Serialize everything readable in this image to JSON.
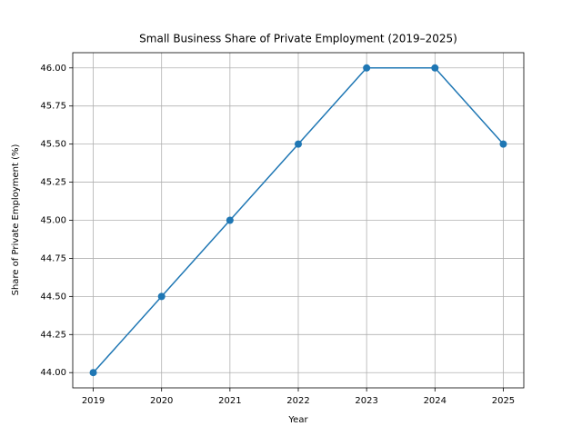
{
  "chart_data": {
    "type": "line",
    "title": "Small Business Share of Private Employment (2019–2025)",
    "x_label": "Year",
    "y_label": "Share of Private Employment (%)",
    "x": [
      2019,
      2020,
      2021,
      2022,
      2023,
      2024,
      2025
    ],
    "series": [
      {
        "color": "#1f77b4",
        "values": [
          44.0,
          44.5,
          45.0,
          45.5,
          46.0,
          46.0,
          45.5
        ]
      }
    ],
    "xlim": [
      2018.7,
      2025.3
    ],
    "xticks": [
      2019,
      2020,
      2021,
      2022,
      2023,
      2024,
      2025
    ],
    "ylim": [
      43.9,
      46.1
    ],
    "yticks": [
      {
        "value": 44.0,
        "label": "44.00"
      },
      {
        "value": 44.25,
        "label": "44.25"
      },
      {
        "value": 44.5,
        "label": "44.50"
      },
      {
        "value": 44.75,
        "label": "44.75"
      },
      {
        "value": 45.0,
        "label": "45.00"
      },
      {
        "value": 45.25,
        "label": "45.25"
      },
      {
        "value": 45.5,
        "label": "45.50"
      },
      {
        "value": 45.75,
        "label": "45.75"
      },
      {
        "value": 46.0,
        "label": "46.00"
      }
    ],
    "grid": true,
    "markers": true
  }
}
